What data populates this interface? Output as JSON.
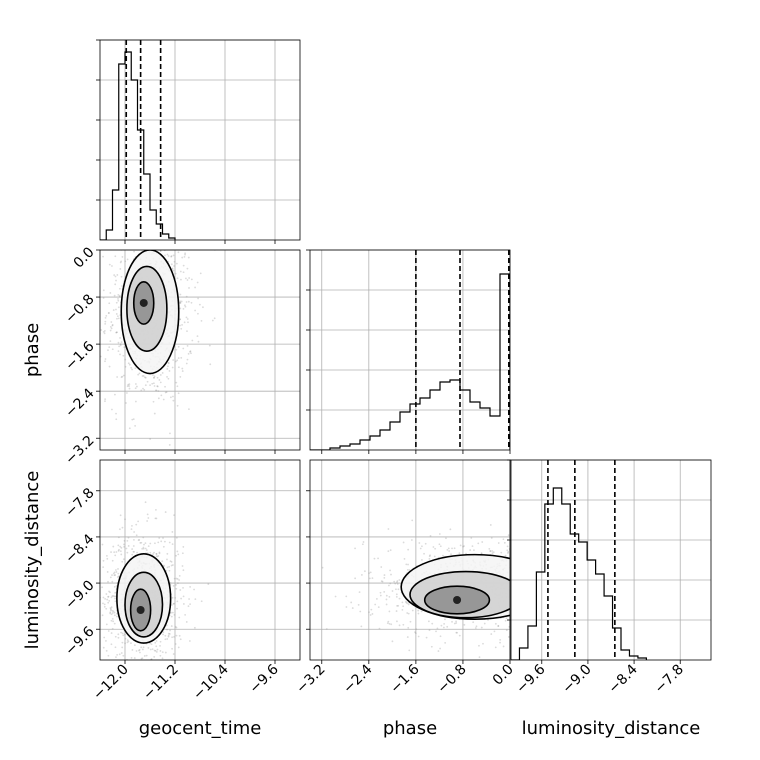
{
  "chart_data": {
    "type": "corner",
    "parameters": [
      {
        "key": "geocent_time",
        "label": "geocent_time",
        "range": [
          -12.4,
          -9.2
        ],
        "ticks": [
          -12.0,
          -11.2,
          -10.4,
          -9.6
        ],
        "tick_labels": [
          "−12.0",
          "−11.2",
          "−10.4",
          "−9.6"
        ]
      },
      {
        "key": "phase",
        "label": "phase",
        "range": [
          -3.4,
          0.0
        ],
        "ticks": [
          -3.2,
          -2.4,
          -1.6,
          -0.8,
          0.0
        ],
        "tick_labels": [
          "−3.2",
          "−2.4",
          "−1.6",
          "−0.8",
          "0.0"
        ]
      },
      {
        "key": "luminosity_distance",
        "label": "luminosity_distance",
        "range": [
          -10.0,
          -7.4
        ],
        "ticks": [
          -9.6,
          -9.0,
          -8.4,
          -7.8
        ],
        "tick_labels": [
          "−9.6",
          "−9.0",
          "−8.4",
          "−7.8"
        ]
      }
    ],
    "histograms": [
      {
        "param": "geocent_time",
        "bin_start": -12.4,
        "bin_width": 0.1,
        "ylim": [
          0,
          1.0
        ],
        "counts": [
          0.0,
          0.05,
          0.25,
          0.88,
          0.94,
          0.8,
          0.55,
          0.33,
          0.15,
          0.08,
          0.03,
          0.01
        ],
        "quantiles": [
          -11.98,
          -11.75,
          -11.43
        ]
      },
      {
        "param": "phase",
        "bin_start": -3.4,
        "bin_width": 0.17,
        "ylim": [
          0,
          1.0
        ],
        "counts": [
          0.0,
          0.0,
          0.01,
          0.02,
          0.03,
          0.05,
          0.07,
          0.1,
          0.14,
          0.19,
          0.23,
          0.26,
          0.3,
          0.34,
          0.35,
          0.3,
          0.24,
          0.21,
          0.17,
          0.88
        ],
        "quantiles": [
          -1.6,
          -0.85,
          -0.02
        ]
      },
      {
        "param": "luminosity_distance",
        "bin_start": -10.0,
        "bin_width": 0.11,
        "ylim": [
          0,
          1.0
        ],
        "counts": [
          0.0,
          0.06,
          0.17,
          0.44,
          0.78,
          0.86,
          0.78,
          0.63,
          0.59,
          0.5,
          0.43,
          0.32,
          0.16,
          0.05,
          0.02,
          0.01
        ],
        "quantiles": [
          -9.52,
          -9.17,
          -8.65
        ]
      }
    ],
    "contours": [
      {
        "x": "geocent_time",
        "y": "phase",
        "levels": [
          {
            "center": [
              -11.7,
              -0.9
            ],
            "half_widths": [
              0.16,
              0.36
            ]
          },
          {
            "center": [
              -11.65,
              -1.0
            ],
            "half_widths": [
              0.32,
              0.72
            ]
          },
          {
            "center": [
              -11.6,
              -1.05
            ],
            "half_widths": [
              0.46,
              1.05
            ]
          }
        ]
      },
      {
        "x": "geocent_time",
        "y": "luminosity_distance",
        "levels": [
          {
            "center": [
              -11.75,
              -9.35
            ],
            "half_widths": [
              0.16,
              0.27
            ]
          },
          {
            "center": [
              -11.7,
              -9.28
            ],
            "half_widths": [
              0.3,
              0.42
            ]
          },
          {
            "center": [
              -11.7,
              -9.2
            ],
            "half_widths": [
              0.43,
              0.58
            ]
          }
        ]
      },
      {
        "x": "phase",
        "y": "luminosity_distance",
        "levels": [
          {
            "center": [
              -0.9,
              -9.22
            ],
            "half_widths": [
              0.55,
              0.18
            ]
          },
          {
            "center": [
              -0.75,
              -9.15
            ],
            "half_widths": [
              0.95,
              0.3
            ]
          },
          {
            "center": [
              -0.6,
              -9.05
            ],
            "half_widths": [
              1.25,
              0.42
            ]
          }
        ]
      }
    ],
    "grid": true
  }
}
